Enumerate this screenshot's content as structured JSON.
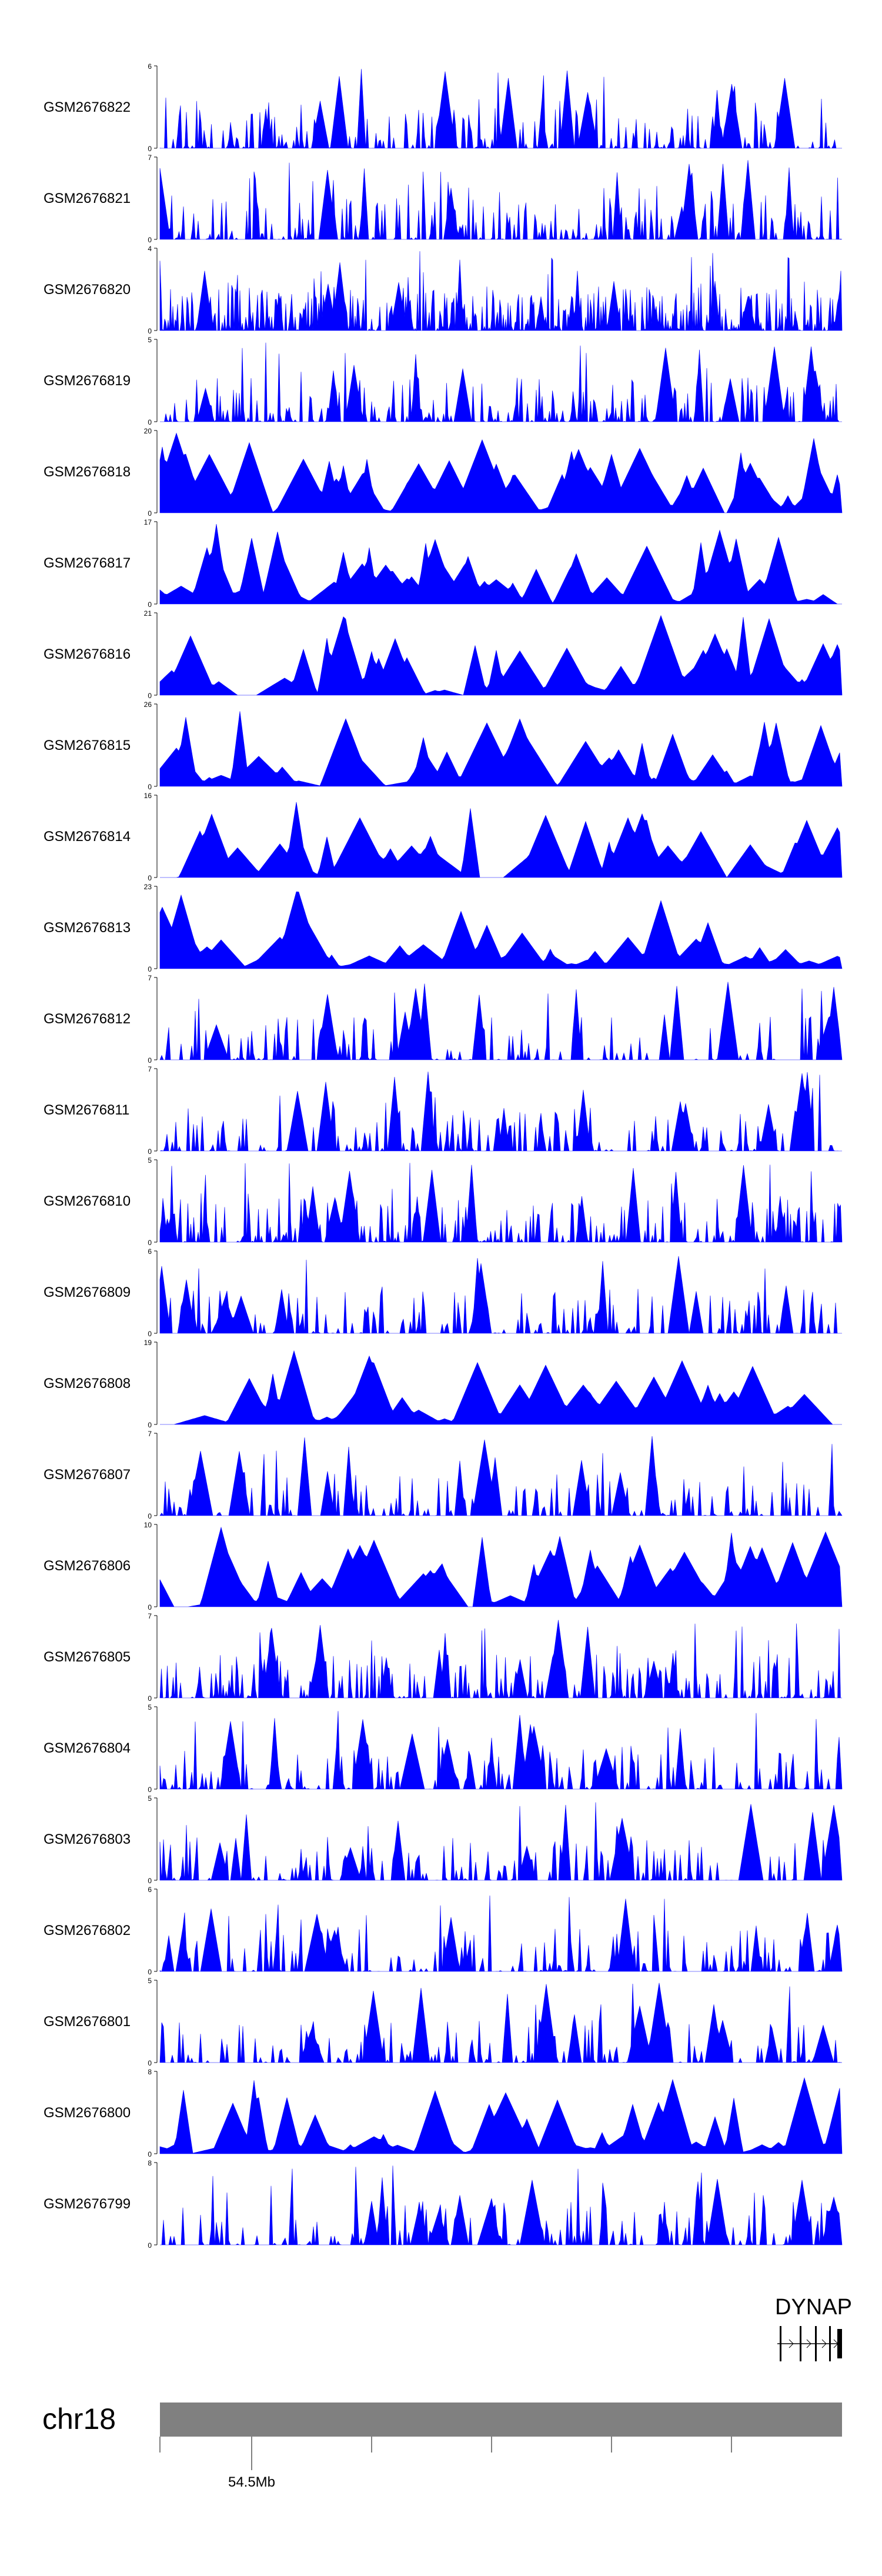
{
  "chart_data": {
    "type": "area",
    "series": [
      {
        "name": "GSM2676822",
        "ymax": 6,
        "seed": 22,
        "style": "dense"
      },
      {
        "name": "GSM2676821",
        "ymax": 7,
        "seed": 21,
        "style": "dense"
      },
      {
        "name": "GSM2676820",
        "ymax": 4,
        "seed": 20,
        "style": "verydense"
      },
      {
        "name": "GSM2676819",
        "ymax": 5,
        "seed": 19,
        "style": "dense"
      },
      {
        "name": "GSM2676818",
        "ymax": 20,
        "seed": 18,
        "style": "sparse"
      },
      {
        "name": "GSM2676817",
        "ymax": 17,
        "seed": 17,
        "style": "sparse"
      },
      {
        "name": "GSM2676816",
        "ymax": 21,
        "seed": 16,
        "style": "sparse"
      },
      {
        "name": "GSM2676815",
        "ymax": 26,
        "seed": 15,
        "style": "sparse"
      },
      {
        "name": "GSM2676814",
        "ymax": 16,
        "seed": 14,
        "style": "sparse"
      },
      {
        "name": "GSM2676813",
        "ymax": 23,
        "seed": 13,
        "style": "sparse"
      },
      {
        "name": "GSM2676812",
        "ymax": 7,
        "seed": 12,
        "style": "medium"
      },
      {
        "name": "GSM2676811",
        "ymax": 7,
        "seed": 11,
        "style": "medium"
      },
      {
        "name": "GSM2676810",
        "ymax": 5,
        "seed": 10,
        "style": "dense"
      },
      {
        "name": "GSM2676809",
        "ymax": 6,
        "seed": 9,
        "style": "medium"
      },
      {
        "name": "GSM2676808",
        "ymax": 19,
        "seed": 8,
        "style": "sparse"
      },
      {
        "name": "GSM2676807",
        "ymax": 7,
        "seed": 7,
        "style": "medium"
      },
      {
        "name": "GSM2676806",
        "ymax": 10,
        "seed": 6,
        "style": "sparse"
      },
      {
        "name": "GSM2676805",
        "ymax": 7,
        "seed": 5,
        "style": "dense"
      },
      {
        "name": "GSM2676804",
        "ymax": 5,
        "seed": 4,
        "style": "medium"
      },
      {
        "name": "GSM2676803",
        "ymax": 5,
        "seed": 3,
        "style": "medium"
      },
      {
        "name": "GSM2676802",
        "ymax": 6,
        "seed": 2,
        "style": "medium"
      },
      {
        "name": "GSM2676801",
        "ymax": 5,
        "seed": 1,
        "style": "medium"
      },
      {
        "name": "GSM2676800",
        "ymax": 8,
        "seed": 100,
        "style": "sparse"
      },
      {
        "name": "GSM2676799",
        "ymax": 8,
        "seed": 99,
        "style": "medium"
      }
    ],
    "ymin": 0,
    "gene": {
      "label": "DYNAP"
    },
    "chromosome": {
      "label": "chr18",
      "tick_label": "54.5Mb"
    },
    "colors": {
      "signal": "#0000ff",
      "ideogram": "#808080"
    }
  }
}
